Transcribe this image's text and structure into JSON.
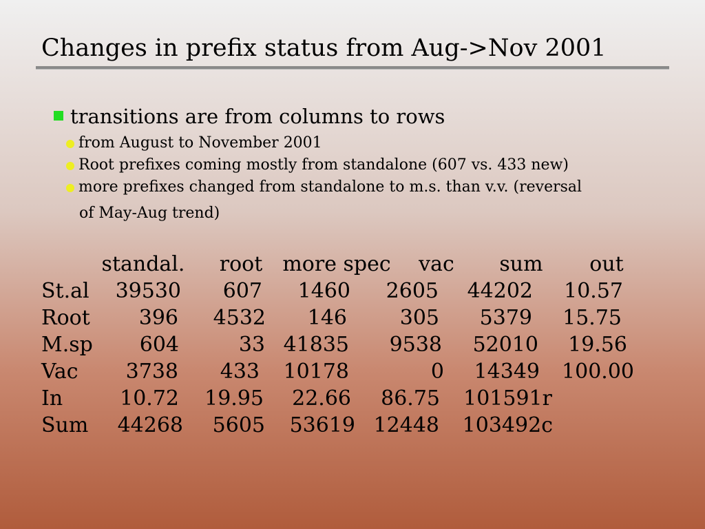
{
  "slide": {
    "title": "Changes in prefix status from Aug->Nov 2001",
    "bullet_main": "transitions are from columns to rows",
    "sub_bullets": [
      "from August to November 2001",
      "Root prefixes coming mostly from standalone (607 vs. 433 new)",
      "more prefixes changed from standalone to m.s. than v.v. (reversal"
    ],
    "sub_bullet_continuation": "of May-Aug trend)",
    "colors": {
      "square_bullet": "#22dd22",
      "round_bullet": "#eeee22",
      "rule": "#8a8a8a"
    }
  },
  "table": {
    "headers": [
      "standal.",
      "root",
      "more spec",
      "vac",
      "sum",
      "out"
    ],
    "rows": [
      {
        "label": "St.al",
        "values": [
          "39530",
          "607",
          "1460",
          "2605",
          "44202",
          "10.57"
        ]
      },
      {
        "label": "Root",
        "values": [
          "396",
          "4532",
          "146",
          "305",
          "5379",
          "15.75"
        ]
      },
      {
        "label": "M.sp",
        "values": [
          "604",
          "33",
          "41835",
          "9538",
          "52010",
          "19.56"
        ]
      },
      {
        "label": "Vac",
        "values": [
          "3738",
          "433",
          "10178",
          "0",
          "14349",
          "100.00"
        ]
      },
      {
        "label": "In",
        "values": [
          "10.72",
          "19.95",
          "22.66",
          "86.75",
          "101591r",
          ""
        ]
      },
      {
        "label": "Sum",
        "values": [
          "44268",
          "5605",
          "53619",
          "12448",
          "103492c",
          ""
        ]
      }
    ]
  }
}
